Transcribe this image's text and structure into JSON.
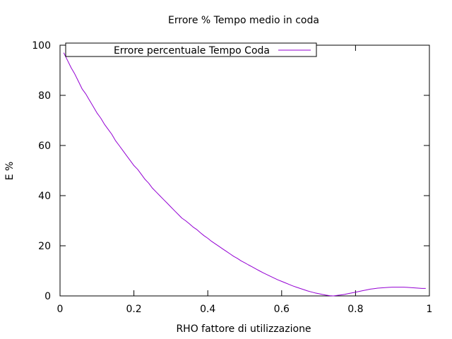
{
  "chart_data": {
    "type": "line",
    "title": "Errore % Tempo medio in coda",
    "xlabel": "RHO fattore di utilizzazione",
    "ylabel": "E %",
    "xlim": [
      0,
      1
    ],
    "ylim": [
      0,
      100
    ],
    "xticks": [
      0,
      0.2,
      0.4,
      0.6,
      0.8,
      1
    ],
    "xtick_labels": [
      "0",
      "0.2",
      "0.4",
      "0.6",
      "0.8",
      "1"
    ],
    "yticks": [
      0,
      20,
      40,
      60,
      80,
      100
    ],
    "ytick_labels": [
      "0",
      "20",
      "40",
      "60",
      "80",
      "100"
    ],
    "grid": false,
    "legend_position": "top-left",
    "series": [
      {
        "name": "Errore percentuale Tempo Coda",
        "color": "#9400d3",
        "x": [
          0.01,
          0.02,
          0.03,
          0.04,
          0.05,
          0.06,
          0.07,
          0.08,
          0.09,
          0.1,
          0.11,
          0.12,
          0.13,
          0.14,
          0.15,
          0.16,
          0.17,
          0.18,
          0.19,
          0.2,
          0.21,
          0.22,
          0.23,
          0.24,
          0.25,
          0.26,
          0.27,
          0.28,
          0.29,
          0.3,
          0.31,
          0.32,
          0.33,
          0.34,
          0.35,
          0.36,
          0.37,
          0.38,
          0.39,
          0.4,
          0.41,
          0.42,
          0.43,
          0.44,
          0.45,
          0.46,
          0.47,
          0.48,
          0.49,
          0.5,
          0.51,
          0.52,
          0.53,
          0.54,
          0.55,
          0.56,
          0.57,
          0.58,
          0.59,
          0.6,
          0.61,
          0.62,
          0.63,
          0.64,
          0.65,
          0.66,
          0.67,
          0.68,
          0.69,
          0.7,
          0.71,
          0.72,
          0.73,
          0.74,
          0.75,
          0.76,
          0.77,
          0.78,
          0.79,
          0.8,
          0.81,
          0.82,
          0.83,
          0.84,
          0.85,
          0.86,
          0.87,
          0.88,
          0.89,
          0.9,
          0.91,
          0.92,
          0.93,
          0.94,
          0.95,
          0.96,
          0.97,
          0.98,
          0.99
        ],
        "y": [
          97.0,
          94.0,
          91.0,
          88.5,
          85.5,
          82.5,
          80.5,
          78.0,
          75.5,
          73.0,
          71.0,
          68.5,
          66.5,
          64.5,
          62.0,
          60.0,
          58.0,
          56.0,
          54.0,
          52.0,
          50.5,
          48.5,
          46.5,
          45.0,
          43.0,
          41.5,
          40.0,
          38.5,
          37.0,
          35.5,
          34.0,
          32.5,
          31.0,
          30.0,
          28.8,
          27.5,
          26.5,
          25.2,
          24.0,
          23.0,
          21.8,
          20.8,
          19.8,
          18.8,
          17.8,
          16.8,
          15.8,
          15.0,
          14.0,
          13.2,
          12.4,
          11.6,
          10.8,
          10.0,
          9.2,
          8.5,
          7.8,
          7.1,
          6.4,
          5.8,
          5.2,
          4.6,
          4.0,
          3.5,
          3.0,
          2.5,
          2.0,
          1.6,
          1.2,
          0.9,
          0.6,
          0.3,
          0.1,
          0.0,
          0.2,
          0.4,
          0.6,
          0.9,
          1.2,
          1.5,
          1.8,
          2.1,
          2.4,
          2.7,
          2.9,
          3.1,
          3.2,
          3.3,
          3.4,
          3.5,
          3.5,
          3.5,
          3.5,
          3.4,
          3.3,
          3.2,
          3.1,
          3.0,
          3.0
        ]
      }
    ]
  }
}
